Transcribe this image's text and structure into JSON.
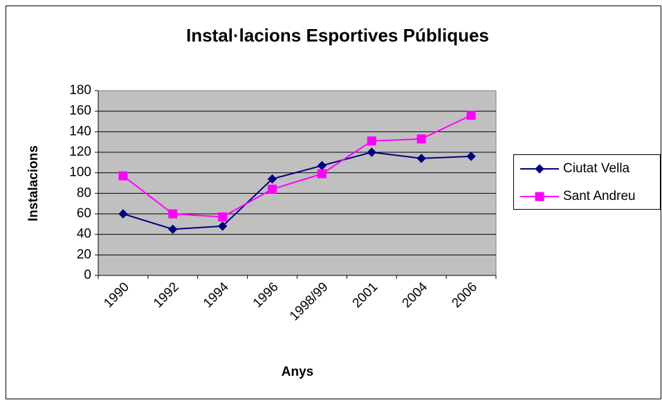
{
  "chart_data": {
    "type": "line",
    "title": "Instal·lacions Esportives Públiques",
    "x_label": "Anys",
    "y_label": "Instalacions",
    "categories": [
      "1990",
      "1992",
      "1994",
      "1996",
      "1998/99",
      "2001",
      "2004",
      "2006"
    ],
    "series": [
      {
        "name": "Ciutat Vella",
        "color": "#000080",
        "marker": "diamond",
        "values": [
          60,
          45,
          48,
          94,
          107,
          120,
          114,
          116
        ]
      },
      {
        "name": "Sant Andreu",
        "color": "#ff00ff",
        "marker": "square",
        "values": [
          97,
          60,
          57,
          84,
          99,
          131,
          133,
          156
        ]
      }
    ],
    "ylim": [
      0,
      180
    ],
    "yticks": [
      0,
      20,
      40,
      60,
      80,
      100,
      120,
      140,
      160,
      180
    ],
    "grid": true,
    "legend": "right"
  }
}
